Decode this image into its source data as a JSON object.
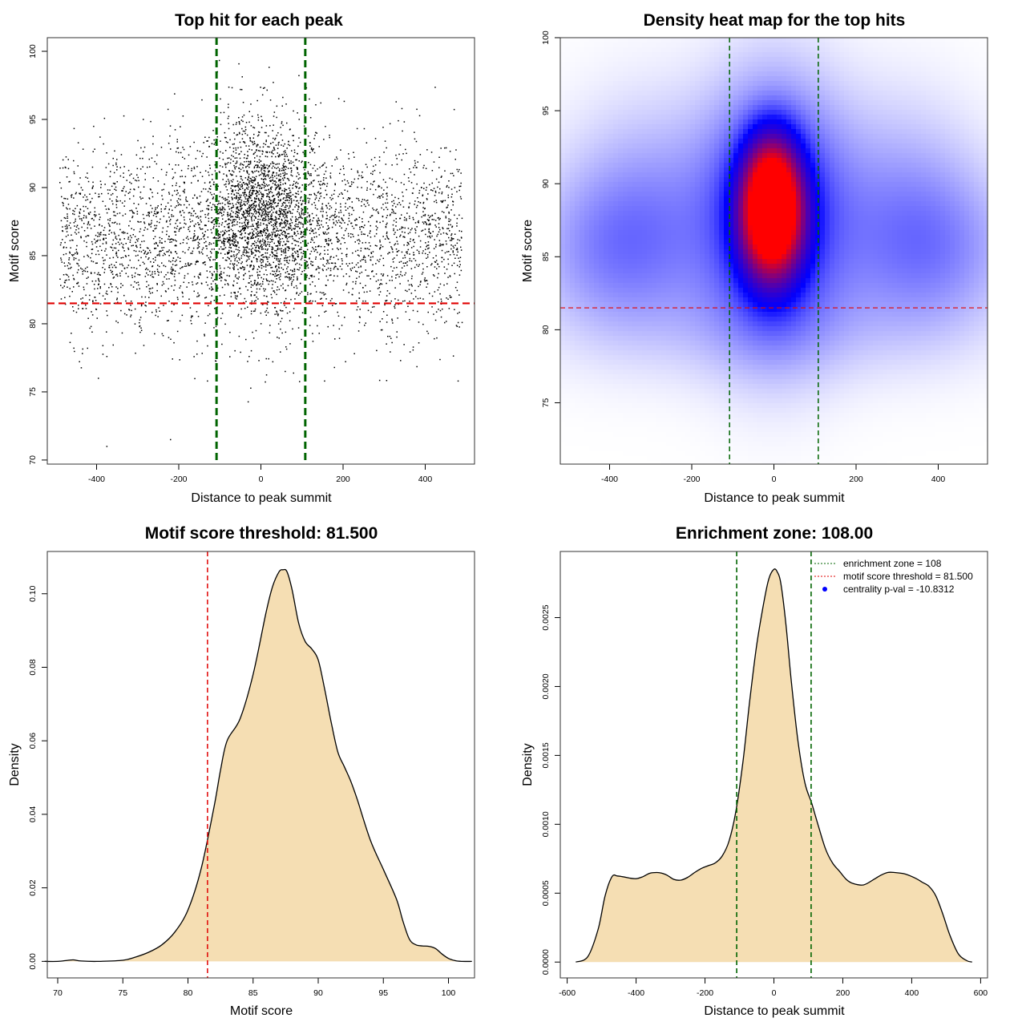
{
  "chart_data": [
    {
      "panel": "top-left",
      "type": "scatter",
      "title": "Top hit for each peak",
      "xlabel": "Distance to peak summit",
      "ylabel": "Motif score",
      "xlim": [
        -520,
        520
      ],
      "ylim": [
        69.7,
        101.0
      ],
      "xticks": [
        -400,
        -200,
        0,
        200,
        400
      ],
      "yticks": [
        70,
        75,
        80,
        85,
        90,
        95,
        100
      ],
      "point_color": "#000000",
      "approx_point_count": 5200,
      "outliers": [
        [
          -375,
          71.0
        ],
        [
          -220,
          71.5
        ],
        [
          -130,
          75.8
        ],
        [
          -375,
          77.6
        ],
        [
          -95,
          78.5
        ],
        [
          155,
          75.8
        ],
        [
          480,
          75.8
        ],
        [
          340,
          77.3
        ]
      ],
      "distribution": {
        "central_cluster": {
          "x_mean": 0,
          "x_sd": 70,
          "y_mean": 88.6,
          "y_sd": 3.3,
          "share": 0.35
        },
        "background": {
          "x_range": [
            -490,
            490
          ],
          "y_mean": 86.3,
          "y_sd": 3.4,
          "share": 0.65
        }
      },
      "annotations": [
        {
          "type": "vline",
          "x": -108,
          "color": "#006400",
          "style": "dashed"
        },
        {
          "type": "vline",
          "x": 108,
          "color": "#006400",
          "style": "dashed"
        },
        {
          "type": "hline",
          "y": 81.5,
          "color": "#e00000",
          "style": "dashed"
        }
      ]
    },
    {
      "panel": "top-right",
      "type": "heatmap",
      "title": "Density heat map for the top hits",
      "xlabel": "Distance to peak summit",
      "ylabel": "Motif score",
      "xlim": [
        -520,
        520
      ],
      "ylim": [
        70.8,
        100.0
      ],
      "xticks": [
        -400,
        -200,
        0,
        200,
        400
      ],
      "yticks": [
        75,
        80,
        85,
        90,
        95,
        100
      ],
      "color_scale": [
        "#ffffff",
        "#0000ff",
        "#ff0000"
      ],
      "density_components": [
        {
          "x": -5,
          "y": 87.5,
          "sx": 48,
          "sy": 2.7,
          "w": 1.55
        },
        {
          "x": -5,
          "y": 90.0,
          "sx": 42,
          "sy": 2.3,
          "w": 0.75
        },
        {
          "x": 0,
          "y": 88.0,
          "sx": 115,
          "sy": 6.0,
          "w": 0.45
        },
        {
          "x": -370,
          "y": 85.5,
          "sx": 150,
          "sy": 4.0,
          "w": 0.22
        },
        {
          "x": 370,
          "y": 85.5,
          "sx": 150,
          "sy": 4.0,
          "w": 0.22
        },
        {
          "x": -300,
          "y": 91.0,
          "sx": 140,
          "sy": 4.5,
          "w": 0.09
        },
        {
          "x": 300,
          "y": 91.0,
          "sx": 140,
          "sy": 4.5,
          "w": 0.09
        },
        {
          "x": 0,
          "y": 80.0,
          "sx": 300,
          "sy": 2.8,
          "w": 0.07
        }
      ],
      "annotations": [
        {
          "type": "vline",
          "x": -108,
          "color": "#006400",
          "style": "dashed"
        },
        {
          "type": "vline",
          "x": 108,
          "color": "#006400",
          "style": "dashed"
        },
        {
          "type": "hline",
          "y": 81.5,
          "color": "#e00000",
          "style": "dashed"
        }
      ]
    },
    {
      "panel": "bottom-left",
      "type": "area",
      "title": "Motif score threshold: 81.500",
      "xlabel": "Motif score",
      "ylabel": "Density",
      "xlim": [
        69.2,
        102.0
      ],
      "ylim": [
        -0.0045,
        0.1115
      ],
      "xticks": [
        70,
        75,
        80,
        85,
        90,
        95,
        100
      ],
      "yticks": [
        0.0,
        0.02,
        0.04,
        0.06,
        0.08,
        0.1
      ],
      "ytick_labels": [
        "0.00",
        "0.02",
        "0.04",
        "0.06",
        "0.08",
        "0.10"
      ],
      "fill_color": "#f5deb3",
      "line_color": "#000000",
      "curve": {
        "x": [
          69.0,
          70.0,
          70.8,
          71.2,
          71.8,
          73.0,
          75.0,
          76.0,
          77.0,
          78.0,
          79.0,
          80.0,
          81.0,
          82.0,
          82.5,
          83.0,
          84.0,
          85.0,
          86.0,
          86.5,
          87.0,
          87.3,
          87.6,
          88.0,
          88.5,
          89.0,
          89.5,
          90.0,
          90.5,
          91.0,
          91.5,
          92.0,
          92.5,
          93.0,
          94.0,
          95.0,
          96.0,
          96.5,
          97.0,
          97.5,
          98.0,
          98.5,
          99.0,
          99.5,
          100.0,
          100.5,
          101.0,
          101.8
        ],
        "y": [
          0.0,
          0.0,
          0.0003,
          0.0004,
          0.0001,
          0.0,
          0.0003,
          0.0012,
          0.0025,
          0.0045,
          0.008,
          0.014,
          0.025,
          0.042,
          0.052,
          0.06,
          0.066,
          0.078,
          0.095,
          0.102,
          0.106,
          0.1065,
          0.106,
          0.101,
          0.092,
          0.087,
          0.085,
          0.082,
          0.074,
          0.065,
          0.057,
          0.053,
          0.049,
          0.044,
          0.033,
          0.025,
          0.017,
          0.011,
          0.006,
          0.0045,
          0.0042,
          0.0041,
          0.0035,
          0.002,
          0.0008,
          0.0002,
          0.0,
          0.0
        ]
      },
      "annotations": [
        {
          "type": "vline",
          "x": 81.5,
          "color": "#e00000",
          "style": "dashed"
        }
      ]
    },
    {
      "panel": "bottom-right",
      "type": "area",
      "title": "Enrichment zone: 108.00",
      "xlabel": "Distance to peak summit",
      "ylabel": "Density",
      "xlim": [
        -620,
        620
      ],
      "ylim": [
        -0.000115,
        0.00298
      ],
      "xticks": [
        -600,
        -400,
        -200,
        0,
        200,
        400,
        600
      ],
      "yticks": [
        0.0,
        0.0005,
        0.001,
        0.0015,
        0.002,
        0.0025
      ],
      "ytick_labels": [
        "0.0000",
        "0.0005",
        "0.0010",
        "0.0015",
        "0.0020",
        "0.0025"
      ],
      "fill_color": "#f5deb3",
      "line_color": "#000000",
      "curve": {
        "x": [
          -575,
          -540,
          -510,
          -490,
          -470,
          -455,
          -440,
          -420,
          -400,
          -380,
          -360,
          -340,
          -325,
          -310,
          -290,
          -270,
          -250,
          -230,
          -210,
          -190,
          -170,
          -150,
          -130,
          -110,
          -90,
          -70,
          -50,
          -30,
          -15,
          0,
          10,
          20,
          35,
          50,
          70,
          90,
          110,
          130,
          150,
          170,
          190,
          210,
          230,
          260,
          290,
          310,
          330,
          350,
          380,
          410,
          430,
          450,
          470,
          490,
          510,
          535,
          560,
          575
        ],
        "y": [
          0.0,
          4e-05,
          0.00024,
          0.00048,
          0.00062,
          0.000625,
          0.00062,
          0.00061,
          0.000605,
          0.00062,
          0.000645,
          0.00065,
          0.000645,
          0.00063,
          0.0006,
          0.000595,
          0.000615,
          0.00065,
          0.00068,
          0.0007,
          0.00072,
          0.00077,
          0.00088,
          0.0011,
          0.00145,
          0.0019,
          0.0023,
          0.0026,
          0.00278,
          0.00285,
          0.00283,
          0.00275,
          0.00245,
          0.00205,
          0.0016,
          0.0013,
          0.00115,
          0.00098,
          0.00082,
          0.00072,
          0.00066,
          0.0006,
          0.00057,
          0.00056,
          0.0006,
          0.00063,
          0.00065,
          0.00065,
          0.00064,
          0.00061,
          0.00058,
          0.00055,
          0.00048,
          0.00035,
          0.0002,
          6e-05,
          1e-05,
          0.0
        ],
        "note": "values traced from rendered curve"
      },
      "legend": {
        "position": "top-right",
        "entries": [
          {
            "label": "enrichment zone = 108",
            "color": "#006400",
            "style": "dotted"
          },
          {
            "label": "motif score threshold = 81.500",
            "color": "#e00000",
            "style": "dotted"
          },
          {
            "label": "centrality p-val = -10.8312",
            "color": "#0000ff",
            "style": "point"
          }
        ]
      },
      "annotations": [
        {
          "type": "vline",
          "x": -108,
          "color": "#006400",
          "style": "dashed"
        },
        {
          "type": "vline",
          "x": 108,
          "color": "#006400",
          "style": "dashed"
        }
      ]
    }
  ]
}
